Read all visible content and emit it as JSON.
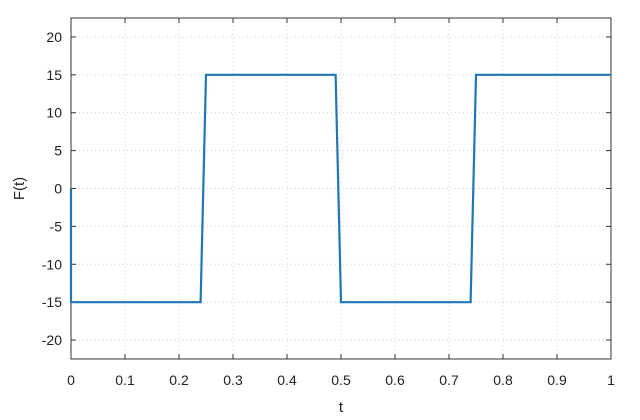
{
  "chart_data": {
    "type": "line",
    "title": "",
    "xlabel": "t",
    "ylabel": "F(t)",
    "xlim": [
      0,
      1
    ],
    "ylim": [
      -22.5,
      22.5
    ],
    "xticks": [
      0,
      0.1,
      0.2,
      0.3,
      0.4,
      0.5,
      0.6,
      0.7,
      0.8,
      0.9,
      1
    ],
    "xtick_labels": [
      "0",
      "0.1",
      "0.2",
      "0.3",
      "0.4",
      "0.5",
      "0.6",
      "0.7",
      "0.8",
      "0.9",
      "1"
    ],
    "yticks": [
      -20,
      -15,
      -10,
      -5,
      0,
      5,
      10,
      15,
      20
    ],
    "ytick_labels": [
      "-20",
      "-15",
      "-10",
      "-5",
      "0",
      "5",
      "10",
      "15",
      "20"
    ],
    "grid": true,
    "grid_style": "dotted",
    "legend": "none",
    "series": [
      {
        "color": "#1f77b4",
        "x": [
          0,
          0,
          0.24,
          0.25,
          0.49,
          0.5,
          0.74,
          0.75,
          1
        ],
        "y": [
          0,
          -15,
          -15,
          15,
          15,
          -15,
          -15,
          15,
          15
        ]
      }
    ]
  }
}
